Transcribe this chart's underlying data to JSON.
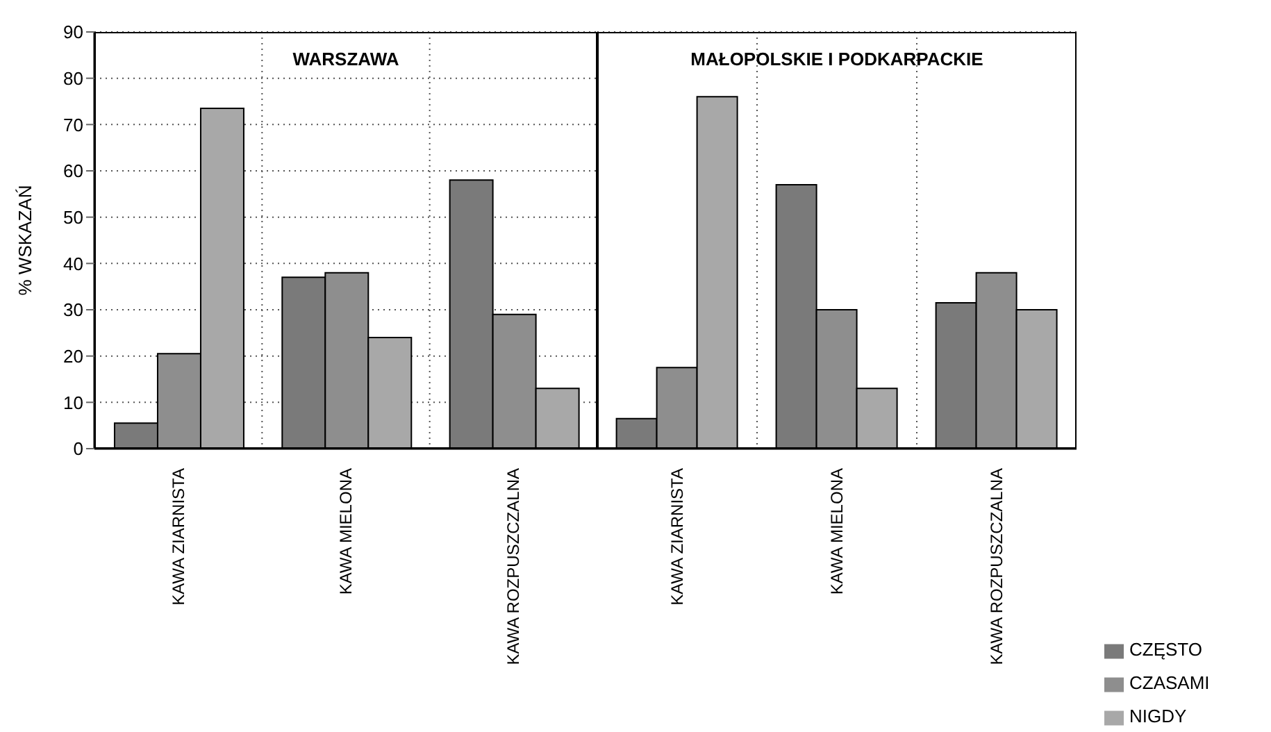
{
  "chart_data": [
    {
      "type": "bar",
      "title": "WARSZAWA",
      "ylabel": "% WSKAZAŃ",
      "categories": [
        "KAWA ZIARNISTA",
        "KAWA MIELONA",
        "KAWA ROZPUSZCZALNA"
      ],
      "series": [
        {
          "color": "#7a7a7a",
          "values": [
            5.5,
            37,
            58
          ]
        },
        {
          "color": "#8e8e8e",
          "values": [
            20.5,
            38,
            29
          ]
        },
        {
          "color": "#a8a8a8",
          "values": [
            73.5,
            24,
            13
          ]
        }
      ],
      "ylim": [
        0,
        90
      ],
      "yticks": [
        0,
        10,
        20,
        30,
        40,
        50,
        60,
        70,
        80,
        90
      ],
      "grid": true
    },
    {
      "type": "bar",
      "title": "MAŁOPOLSKIE I PODKARPACKIE",
      "categories": [
        "KAWA ZIARNISTA",
        "KAWA MIELONA",
        "KAWA ROZPUSZCZALNA"
      ],
      "series": [
        {
          "name": "CZĘSTO",
          "color": "#7a7a7a",
          "values": [
            6.5,
            57,
            31.5
          ]
        },
        {
          "name": "CZASAMI",
          "color": "#8e8e8e",
          "values": [
            17.5,
            30,
            38
          ]
        },
        {
          "name": "NIGDY",
          "color": "#a8a8a8",
          "values": [
            76,
            13,
            30
          ]
        }
      ],
      "ylim": [
        0,
        90
      ],
      "yticks": [
        0,
        10,
        20,
        30,
        40,
        50,
        60,
        70,
        80,
        90
      ],
      "grid": true,
      "legend": "bottom right",
      "tick_labels": "x"
    }
  ]
}
